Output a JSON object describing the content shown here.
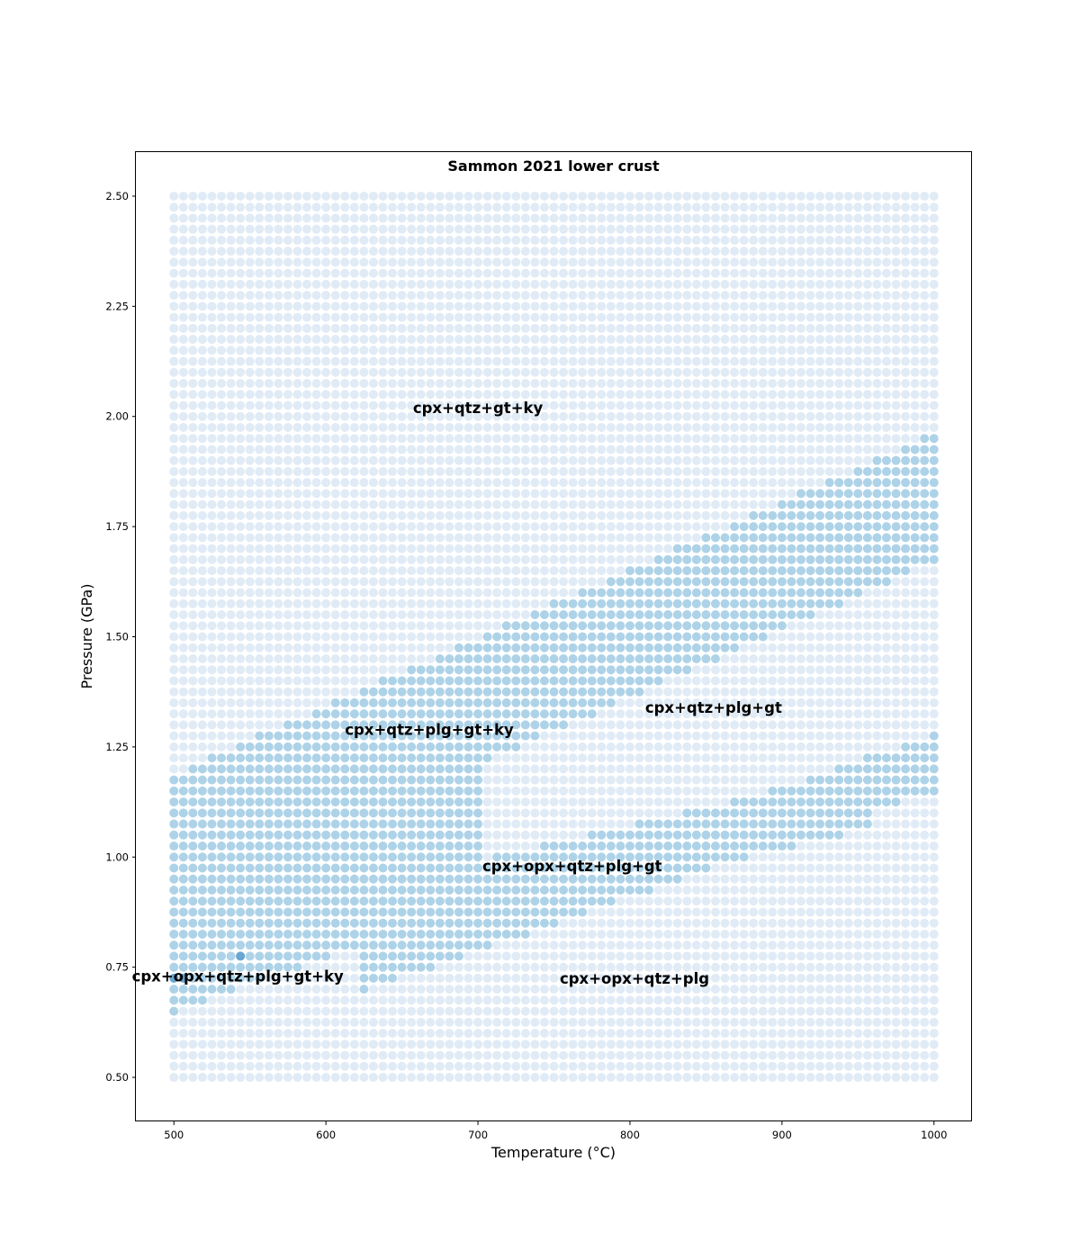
{
  "chart_data": {
    "type": "scatter",
    "title": "Sammon 2021 lower crust",
    "xlabel": "Temperature (°C)",
    "ylabel": "Pressure (GPa)",
    "xlim": [
      475,
      1025
    ],
    "ylim": [
      0.4,
      2.6
    ],
    "xticks": [
      500,
      600,
      700,
      800,
      900,
      1000
    ],
    "xtick_labels": [
      "500",
      "600",
      "700",
      "800",
      "900",
      "1000"
    ],
    "yticks": [
      0.5,
      0.75,
      1.0,
      1.25,
      1.5,
      1.75,
      2.0,
      2.25,
      2.5
    ],
    "ytick_labels": [
      "0.50",
      "0.75",
      "1.00",
      "1.25",
      "1.50",
      "1.75",
      "2.00",
      "2.25",
      "2.50"
    ],
    "grid": false,
    "grid_points": {
      "t_min": 500,
      "t_max": 1000,
      "t_count": 81,
      "p_min": 0.5,
      "p_max": 2.5,
      "p_count": 81
    },
    "colors": {
      "background_point": "#c6dbef",
      "boundary_point": "#6baed6",
      "overlap_point": "#3182bd"
    },
    "boundary_bands": [
      {
        "name": "upper",
        "points": [
          [
            500,
            1.18
          ],
          [
            1000,
            1.95
          ]
        ],
        "thickness_gpa": 0.12,
        "bounds": [
          [
            500,
            1.18
          ],
          [
            1000,
            1.95
          ]
        ]
      },
      {
        "name": "lower-left",
        "points": [
          [
            500,
            0.65
          ],
          [
            590,
            0.76
          ],
          [
            1000,
            1.26
          ]
        ],
        "thickness_gpa": 0.11
      },
      {
        "name": "wedge-upper",
        "points": [
          [
            500,
            0.97
          ],
          [
            780,
            0.97
          ]
        ],
        "thickness_gpa": 0.05
      },
      {
        "name": "wedge",
        "points": [
          [
            500,
            0.7
          ],
          [
            800,
            1.05
          ],
          [
            1000,
            1.26
          ]
        ],
        "thickness_gpa": 0.1
      }
    ],
    "field_labels": [
      {
        "text": "cpx+qtz+gt+ky",
        "t": 700,
        "p": 2.02
      },
      {
        "text": "cpx+qtz+plg+gt",
        "t": 855,
        "p": 1.34
      },
      {
        "text": "cpx+qtz+plg+gt+ky",
        "t": 668,
        "p": 1.29
      },
      {
        "text": "cpx+opx+qtz+plg+gt",
        "t": 762,
        "p": 0.98
      },
      {
        "text": "cpx+opx+qtz+plg+gt+ky",
        "t": 542,
        "p": 0.73
      },
      {
        "text": "cpx+opx+qtz+plg",
        "t": 803,
        "p": 0.725
      }
    ]
  }
}
